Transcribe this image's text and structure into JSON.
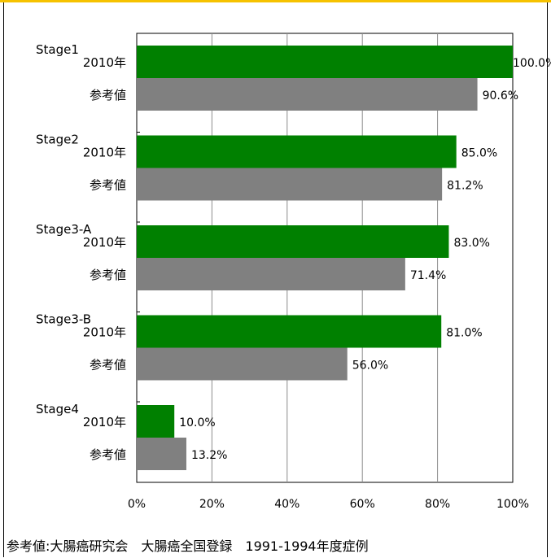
{
  "chart_data": {
    "type": "bar",
    "orientation": "horizontal",
    "categories": [
      {
        "name": "Stage1",
        "rows": [
          "2010年",
          "参考値"
        ]
      },
      {
        "name": "Stage2",
        "rows": [
          "2010年",
          "参考値"
        ]
      },
      {
        "name": "Stage3-A",
        "rows": [
          "2010年",
          "参考値"
        ]
      },
      {
        "name": "Stage3-B",
        "rows": [
          "2010年",
          "参考値"
        ]
      },
      {
        "name": "Stage4",
        "rows": [
          "2010年",
          "参考値"
        ]
      }
    ],
    "series": [
      {
        "name": "2010年",
        "color": "#008000",
        "values": [
          100.0,
          85.0,
          83.0,
          81.0,
          10.0
        ],
        "labels": [
          "100.0%",
          "85.0%",
          "83.0%",
          "81.0%",
          "10.0%"
        ]
      },
      {
        "name": "参考値",
        "color": "#808080",
        "values": [
          90.6,
          81.2,
          71.4,
          56.0,
          13.2
        ],
        "labels": [
          "90.6%",
          "81.2%",
          "71.4%",
          "56.0%",
          "13.2%"
        ]
      }
    ],
    "xlim": [
      0,
      100
    ],
    "x_ticks": [
      "0%",
      "20%",
      "40%",
      "60%",
      "80%",
      "100%"
    ],
    "grid": true,
    "title": "",
    "xlabel": "",
    "ylabel": ""
  },
  "footnote": "参考値:大腸癌研究会　大腸癌全国登録　1991-1994年度症例",
  "colors": {
    "top_rule": "#f6c200"
  }
}
